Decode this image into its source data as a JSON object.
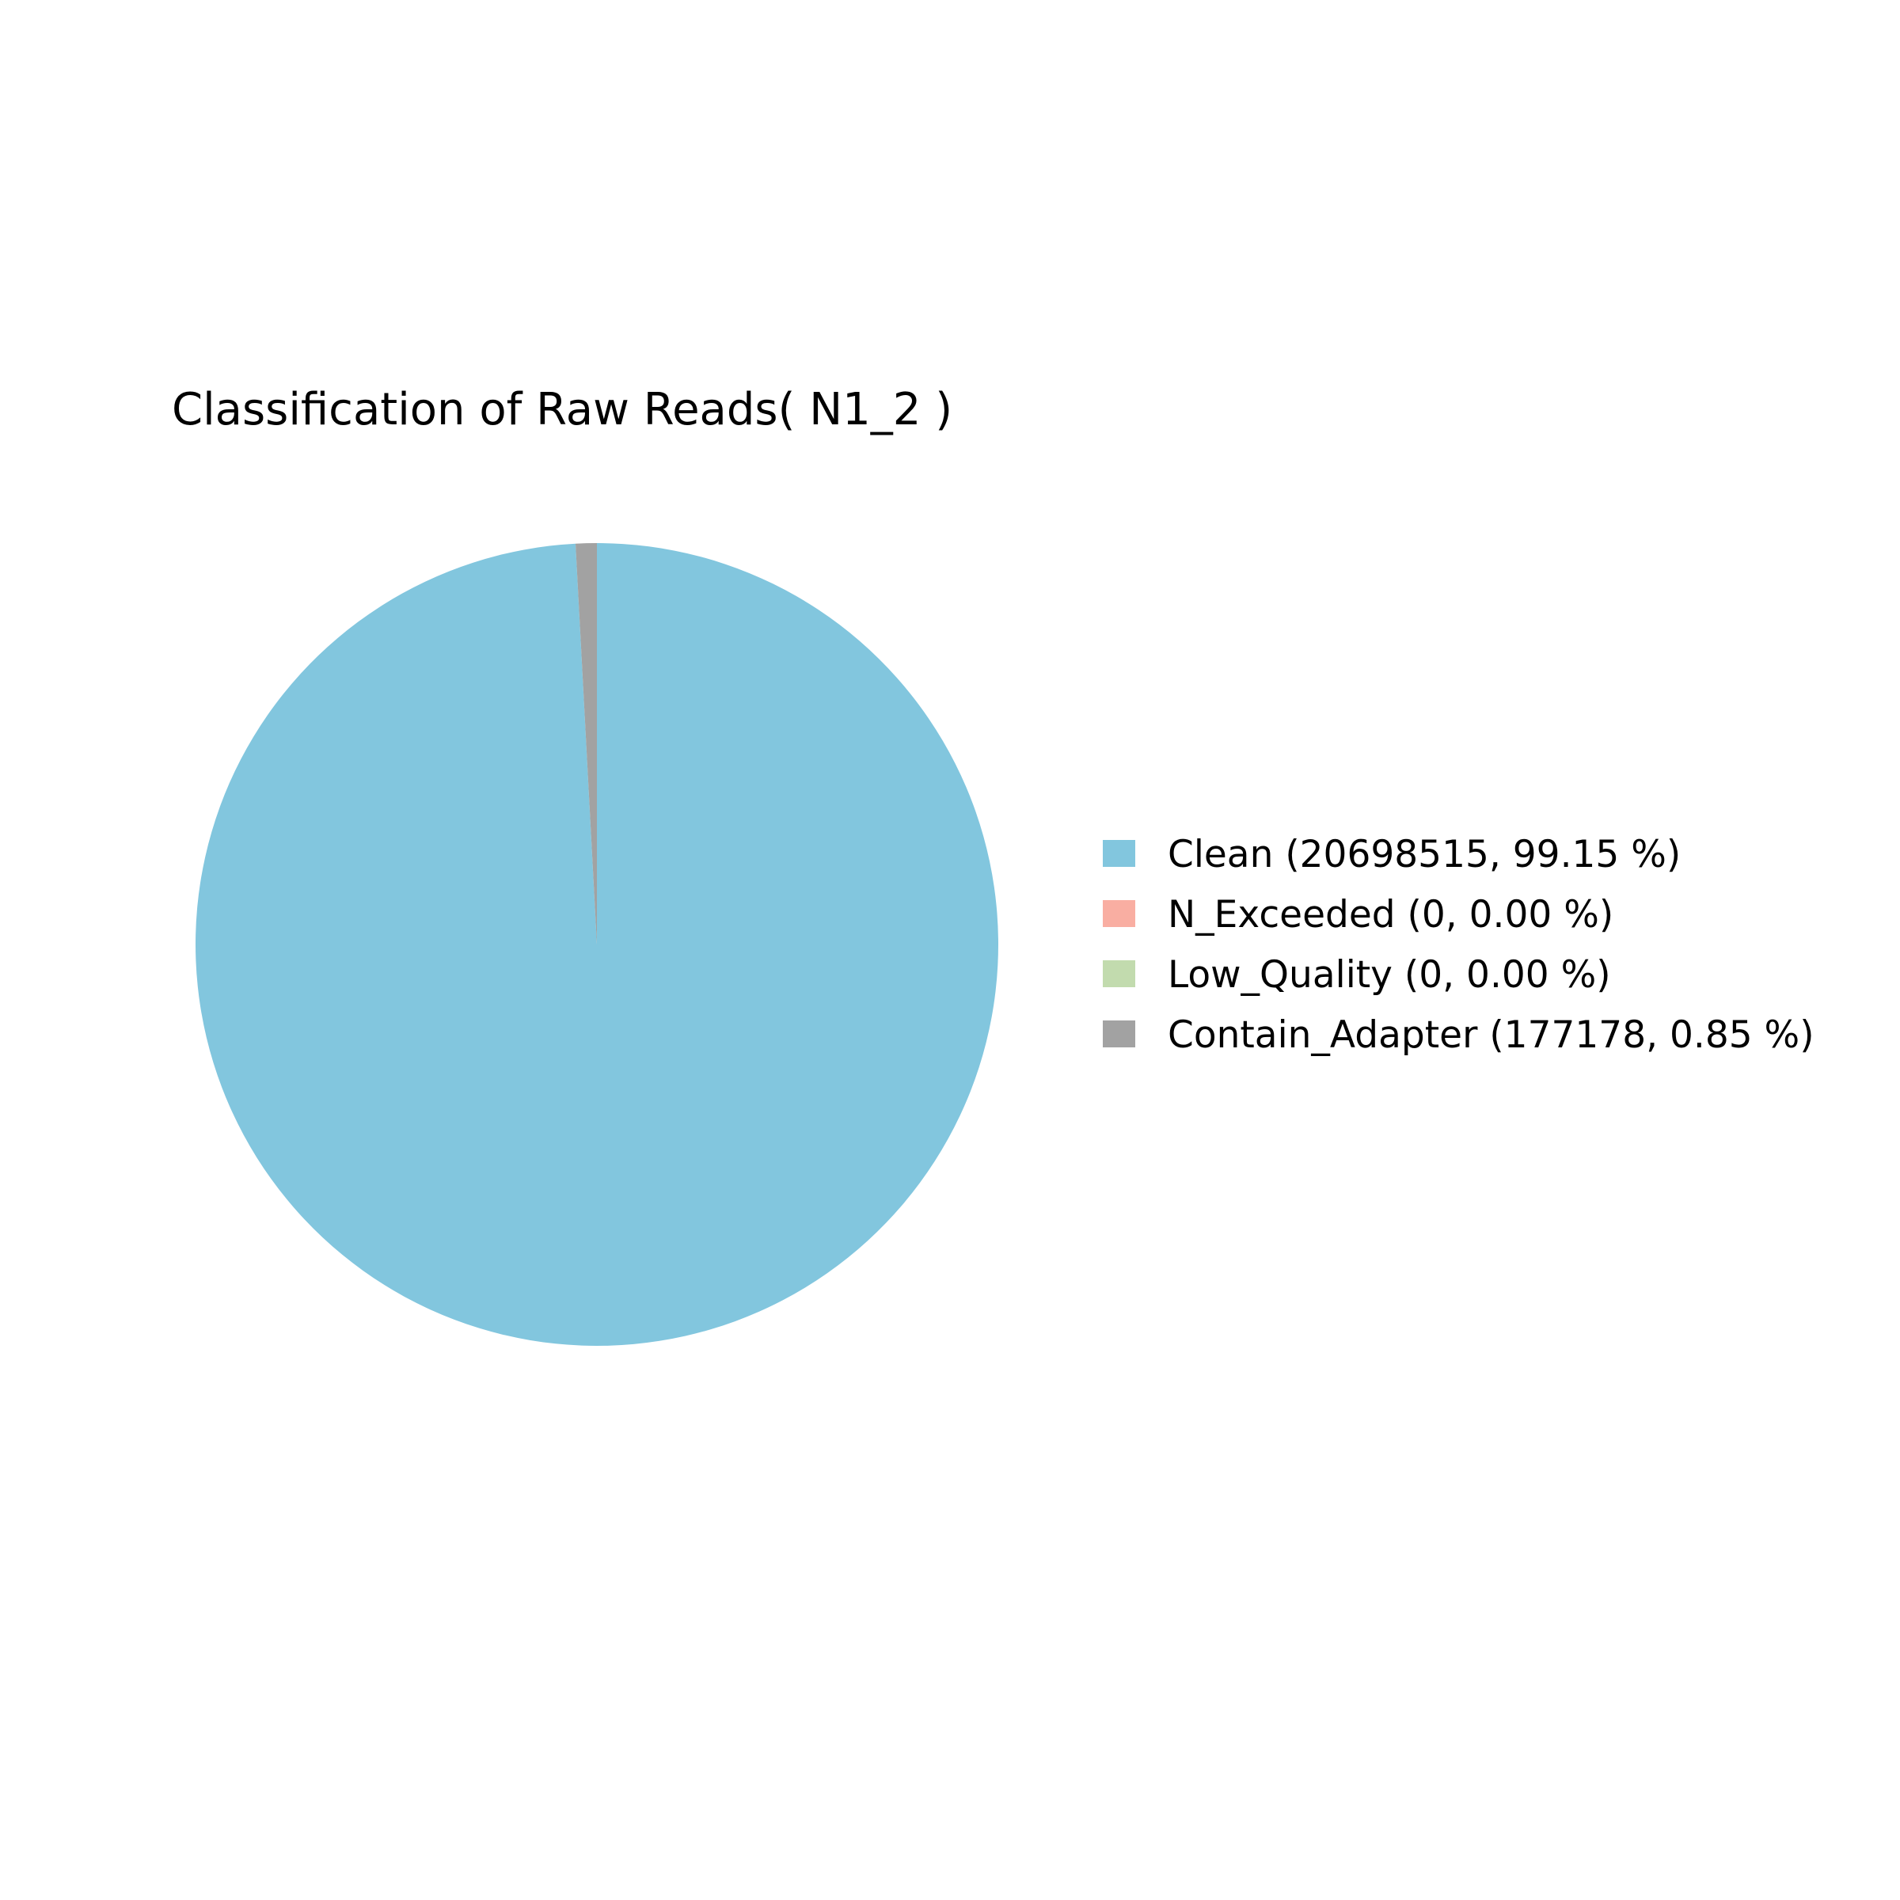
{
  "chart_data": {
    "type": "pie",
    "title": "Classification of Raw Reads( N1_2 )",
    "start_angle": "top",
    "direction": "clockwise",
    "legend_position": "right",
    "slices": [
      {
        "label": "Clean",
        "value": 20698515,
        "percent": 99.15,
        "color": "#82c6de",
        "legend_text": "Clean (20698515, 99.15 %)"
      },
      {
        "label": "N_Exceeded",
        "value": 0,
        "percent": 0.0,
        "color": "#f9aea2",
        "legend_text": "N_Exceeded (0, 0.00 %)"
      },
      {
        "label": "Low_Quality",
        "value": 0,
        "percent": 0.0,
        "color": "#c2dbae",
        "legend_text": "Low_Quality (0, 0.00 %)"
      },
      {
        "label": "Contain_Adapter",
        "value": 177178,
        "percent": 0.85,
        "color": "#a2a2a2",
        "legend_text": "Contain_Adapter (177178, 0.85 %)"
      }
    ]
  }
}
